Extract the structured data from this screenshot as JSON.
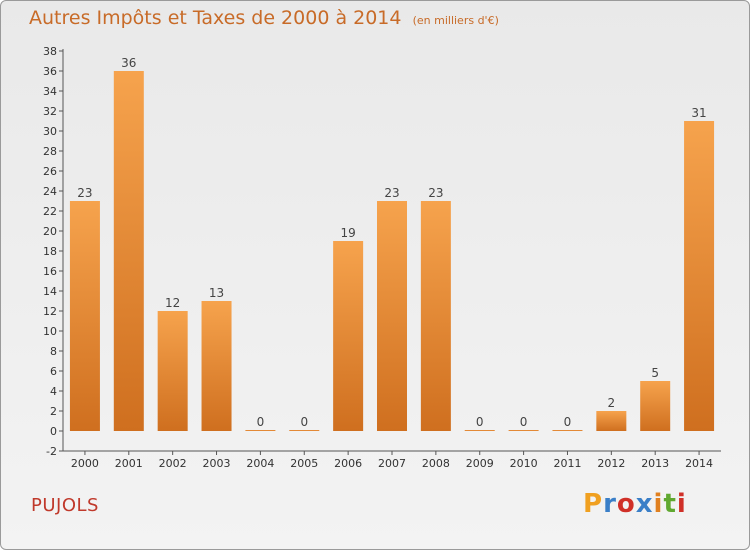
{
  "header": {
    "title": "Autres Impôts et Taxes de 2000 à 2014",
    "subtitle": "(en milliers d'€)"
  },
  "footer": {
    "commune": "PUJOLS",
    "logo": "Proxiti",
    "logo_colors": [
      "#f0a020",
      "#3a7fc8",
      "#d03028",
      "#3a7fc8",
      "#e08020",
      "#60a830",
      "#d03028"
    ]
  },
  "chart_data": {
    "type": "bar",
    "title": "Autres Impôts et Taxes de 2000 à 2014",
    "subtitle": "(en milliers d'€)",
    "xlabel": "",
    "ylabel": "",
    "categories": [
      "2000",
      "2001",
      "2002",
      "2003",
      "2004",
      "2005",
      "2006",
      "2007",
      "2008",
      "2009",
      "2010",
      "2011",
      "2012",
      "2013",
      "2014"
    ],
    "values": [
      23,
      36,
      12,
      13,
      0,
      0,
      19,
      23,
      23,
      0,
      0,
      0,
      2,
      5,
      31
    ],
    "ylim": [
      -2,
      38
    ],
    "ytick_step": 2,
    "grid": false,
    "data_labels": true,
    "bar_color_light": "#f6a34d",
    "bar_color_dark": "#cf6f1f",
    "label_color": "#444444",
    "axis_color": "#555555"
  }
}
